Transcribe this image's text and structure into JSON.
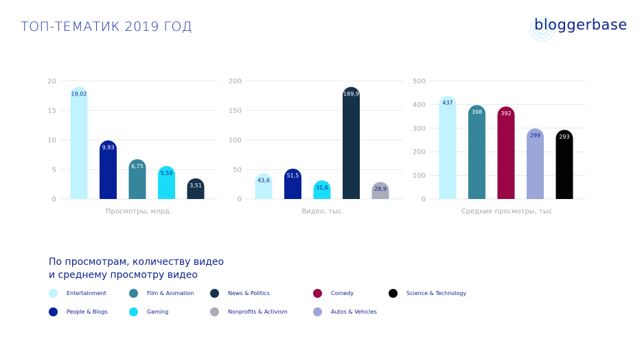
{
  "title": "ТОП-ТЕМАТИК 2019 ГОД",
  "logo": {
    "text": "bloggerbase",
    "icon": "signal-waves-icon"
  },
  "colors": {
    "Entertainment": "#c1f3fc",
    "People & Blogs": "#06209a",
    "Film & Animation": "#35859b",
    "Gaming": "#1adcfa",
    "News & Politics": "#16324b",
    "Nonprofits & Activism": "#a9acbb",
    "Comedy": "#9a0645",
    "Autos & Vehicles": "#9ca6d8",
    "Science & Technology": "#030303"
  },
  "chart_data": [
    {
      "type": "bar",
      "title": "",
      "xlabel": "Просмотры, млрд.",
      "ylabel": "",
      "ylim": [
        0,
        20
      ],
      "yticks": [
        0,
        5,
        10,
        15,
        20
      ],
      "grid": true,
      "categories": [
        "Entertainment",
        "People & Blogs",
        "Film & Animation",
        "Gaming",
        "News & Politics"
      ],
      "values": [
        19.02,
        9.93,
        6.75,
        5.59,
        3.51
      ],
      "labels": [
        "19,02",
        "9,93",
        "6,75",
        "5,59",
        "3,51"
      ]
    },
    {
      "type": "bar",
      "title": "",
      "xlabel": "Видео, тыс.",
      "ylabel": "",
      "ylim": [
        0,
        200
      ],
      "yticks": [
        0,
        50,
        100,
        150,
        200
      ],
      "grid": true,
      "categories": [
        "Entertainment",
        "People & Blogs",
        "Gaming",
        "News & Politics",
        "Nonprofits & Activism"
      ],
      "values": [
        43.6,
        51.5,
        31.6,
        189.9,
        28.9
      ],
      "labels": [
        "43,6",
        "51,5",
        "31,6",
        "189,9",
        "28,9"
      ]
    },
    {
      "type": "bar",
      "title": "",
      "xlabel": "Средние просмотры, тыс",
      "ylabel": "",
      "ylim": [
        0,
        500
      ],
      "yticks": [
        0,
        100,
        200,
        300,
        400,
        500
      ],
      "grid": true,
      "categories": [
        "Entertainment",
        "Film & Animation",
        "Comedy",
        "Autos & Vehicles",
        "Science & Technology"
      ],
      "values": [
        437,
        398,
        392,
        299,
        293
      ],
      "labels": [
        "437",
        "398",
        "392",
        "299",
        "293"
      ]
    }
  ],
  "legend": {
    "title_line1": "По просмотрам, количеству видео",
    "title_line2": "и среднему просмотру видео",
    "items": [
      {
        "label": "Entertainment",
        "color": "#c1f3fc"
      },
      {
        "label": "Film & Animation",
        "color": "#35859b"
      },
      {
        "label": "News & Politics",
        "color": "#16324b"
      },
      {
        "label": "Comedy",
        "color": "#9a0645"
      },
      {
        "label": "Science & Technology",
        "color": "#030303"
      },
      {
        "label": "People & Blogs",
        "color": "#06209a"
      },
      {
        "label": "Gaming",
        "color": "#1adcfa"
      },
      {
        "label": "Nonprofits & Activism",
        "color": "#a9acbb"
      },
      {
        "label": "Autos & Vehicles",
        "color": "#9ca6d8"
      }
    ]
  }
}
